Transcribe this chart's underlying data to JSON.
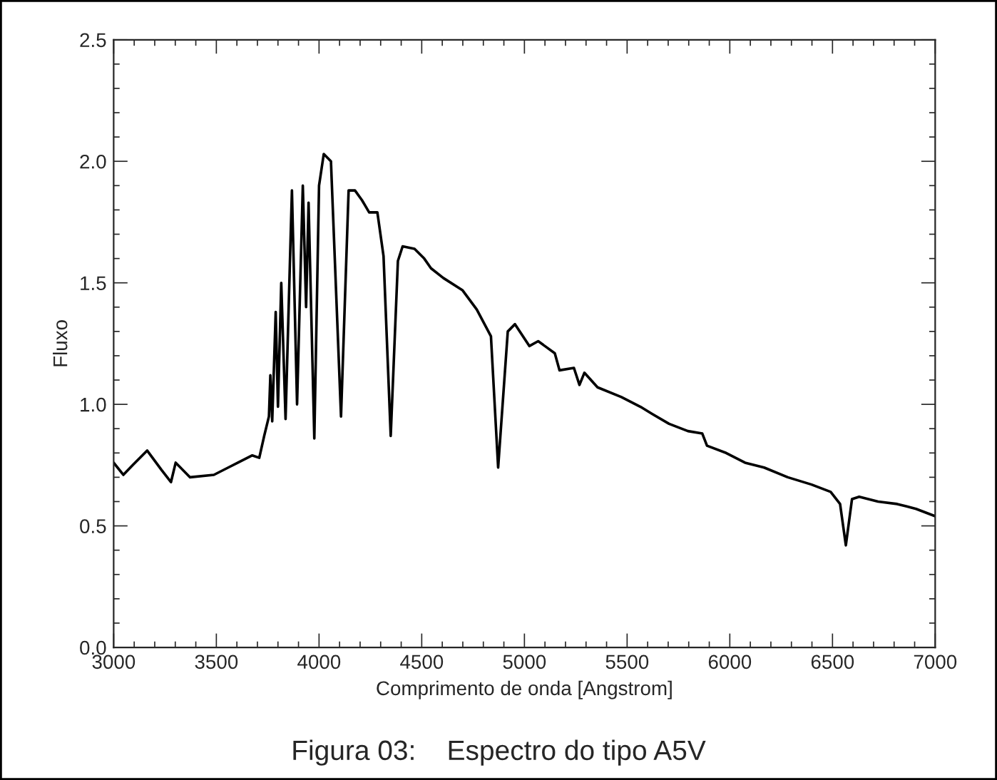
{
  "chart_data": {
    "type": "line",
    "xlabel": "Comprimento de onda [Angstrom]",
    "ylabel": "Fluxo",
    "annotations": [
      "Figura 03:    Espectro do tipo A5V"
    ],
    "xlim": [
      3000,
      7000
    ],
    "xticks": [
      3000,
      3500,
      4000,
      4500,
      5000,
      5500,
      6000,
      6500,
      7000
    ],
    "ylim": [
      0.0,
      2.5
    ],
    "yticks": [
      {
        "value": 0,
        "label": "0.0"
      },
      {
        "value": 0.5,
        "label": "0.5"
      },
      {
        "value": 1.0,
        "label": "1.0"
      },
      {
        "value": 1.5,
        "label": "1.5"
      },
      {
        "value": 2.0,
        "label": "2.0"
      },
      {
        "value": 2.5,
        "label": "2.5"
      }
    ],
    "grid": false,
    "legend": false,
    "marker": "none",
    "line_style": "solid",
    "series": [
      {
        "color": "#000000",
        "x": [
          3000,
          3047,
          3093,
          3163,
          3233,
          3279,
          3302,
          3372,
          3488,
          3558,
          3605,
          3675,
          3709,
          3733,
          3756,
          3763,
          3772,
          3789,
          3800,
          3816,
          3837,
          3868,
          3893,
          3921,
          3937,
          3949,
          3977,
          4000,
          4023,
          4058,
          4107,
          4144,
          4175,
          4209,
          4244,
          4284,
          4314,
          4349,
          4384,
          4407,
          4465,
          4512,
          4545,
          4605,
          4698,
          4768,
          4837,
          4872,
          4919,
          4954,
          5024,
          5067,
          5148,
          5171,
          5241,
          5268,
          5292,
          5356,
          5472,
          5565,
          5623,
          5704,
          5796,
          5866,
          5889,
          5982,
          6074,
          6167,
          6282,
          6398,
          6491,
          6537,
          6565,
          6595,
          6630,
          6722,
          6815,
          6907,
          7000
        ],
        "values": [
          0.76,
          0.71,
          0.75,
          0.81,
          0.73,
          0.68,
          0.76,
          0.7,
          0.71,
          0.74,
          0.76,
          0.79,
          0.78,
          0.87,
          0.95,
          1.12,
          0.93,
          1.38,
          0.99,
          1.5,
          0.94,
          1.88,
          1.0,
          1.9,
          1.4,
          1.83,
          0.86,
          1.9,
          2.03,
          2.0,
          0.95,
          1.88,
          1.88,
          1.84,
          1.79,
          1.79,
          1.61,
          0.87,
          1.59,
          1.65,
          1.64,
          1.6,
          1.56,
          1.52,
          1.47,
          1.39,
          1.28,
          0.74,
          1.3,
          1.33,
          1.24,
          1.26,
          1.21,
          1.14,
          1.15,
          1.08,
          1.13,
          1.07,
          1.03,
          0.99,
          0.96,
          0.92,
          0.89,
          0.88,
          0.83,
          0.8,
          0.76,
          0.74,
          0.7,
          0.67,
          0.64,
          0.59,
          0.42,
          0.61,
          0.62,
          0.6,
          0.59,
          0.57,
          0.54
        ]
      }
    ]
  }
}
